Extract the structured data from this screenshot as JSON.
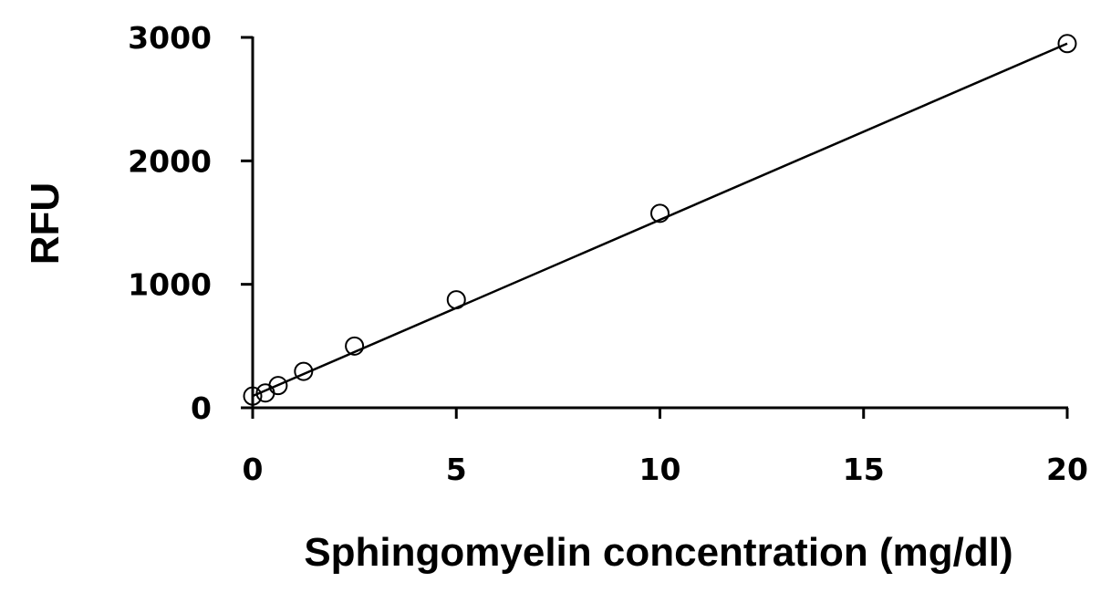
{
  "chart_data": {
    "type": "scatter",
    "title": "",
    "xlabel": "Sphingomyelin concentration (mg/dl)",
    "ylabel": "RFU",
    "xlim": [
      0,
      20
    ],
    "ylim": [
      0,
      3000
    ],
    "x_ticks": [
      "0",
      "5",
      "10",
      "15",
      "20"
    ],
    "y_ticks": [
      "0",
      "1000",
      "2000",
      "3000"
    ],
    "grid": false,
    "legend": "none",
    "marker": "open-circle",
    "series": [
      {
        "x": [
          0,
          0.3125,
          0.625,
          1.25,
          2.5,
          5,
          10,
          20
        ],
        "y": [
          95,
          120,
          180,
          295,
          500,
          875,
          1575,
          2950
        ]
      }
    ],
    "trendline": {
      "type": "linear",
      "x": [
        0,
        20
      ],
      "y": [
        95,
        2950
      ]
    },
    "colors": {
      "axis": "#000000",
      "marker_stroke": "#000000",
      "marker_fill": "#ffffff",
      "line": "#000000"
    }
  }
}
